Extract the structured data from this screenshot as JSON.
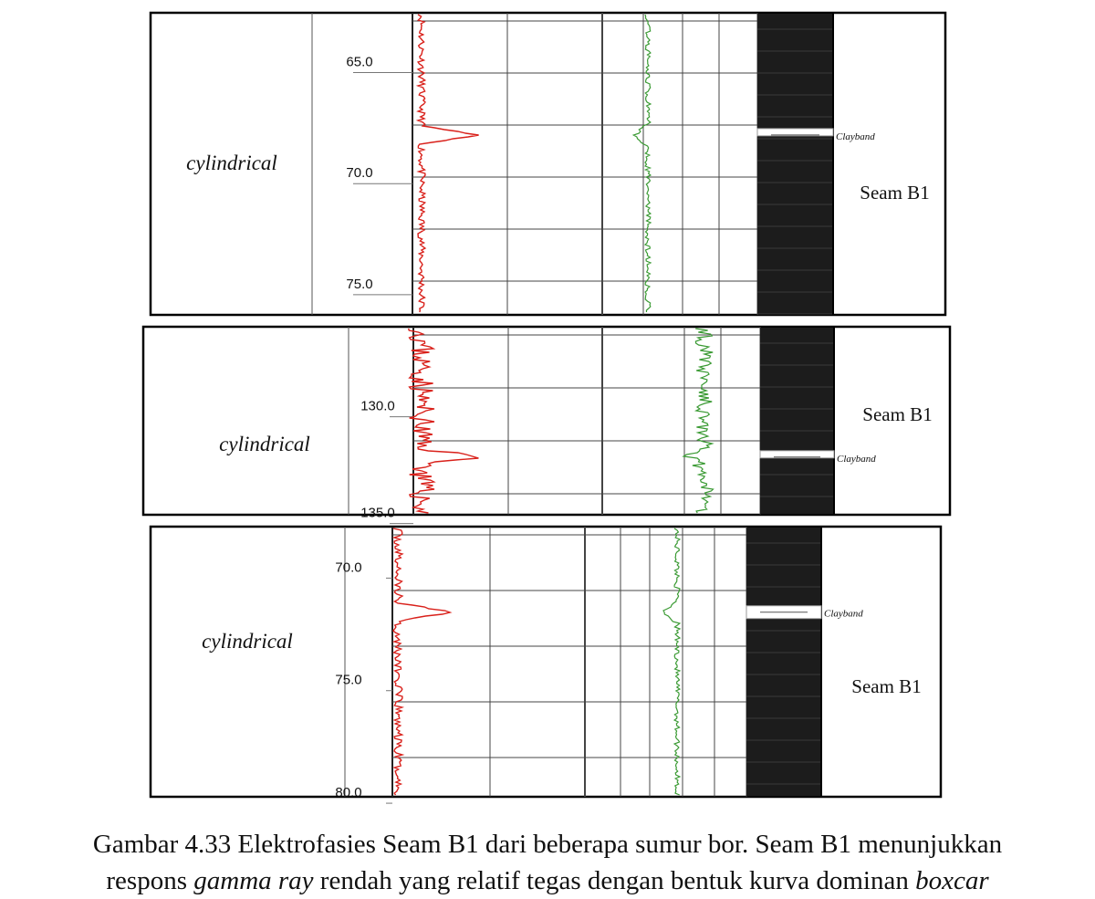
{
  "panels": [
    {
      "facies": "cylindrical",
      "depth_labels": [
        {
          "value": "65.0",
          "depth": 65.0
        },
        {
          "value": "70.0",
          "depth": 70.0
        },
        {
          "value": "75.0",
          "depth": 75.0
        }
      ],
      "depth_range": [
        62.8,
        76.4
      ],
      "clayband_depth": 68.3,
      "clayband_label": "Clayband",
      "seam_label": "Seam B1",
      "seam_label_depth": 70.9
    },
    {
      "facies": "cylindrical",
      "depth_labels": [
        {
          "value": "130.0",
          "depth": 130.0
        },
        {
          "value": "135.0",
          "depth": 135.0
        }
      ],
      "depth_range": [
        126.3,
        135.1
      ],
      "clayband_depth": 132.4,
      "clayband_label": "Clayband",
      "seam_label": "Seam B1",
      "seam_label_depth": 130.4
    },
    {
      "facies": "cylindrical",
      "depth_labels": [
        {
          "value": "70.0",
          "depth": 70.0
        },
        {
          "value": "75.0",
          "depth": 75.0
        },
        {
          "value": "80.0",
          "depth": 80.0
        }
      ],
      "depth_range": [
        68.2,
        80.2
      ],
      "clayband_depth": 72.0,
      "clayband_label": "Clayband",
      "seam_label": "Seam B1",
      "seam_label_depth": 75.3
    }
  ],
  "caption": {
    "line1": "Gambar 4.33 Elektrofasies Seam B1 dari beberapa sumur bor. Seam B1 menunjukkan",
    "line2_start": "respons ",
    "line2_italic": "gamma ray",
    "line2_end": " rendah yang relatif tegas dengan bentuk kurva dominan ",
    "line2_italic2": "boxcar"
  },
  "colors": {
    "gamma_ray": "#d9201a",
    "density": "#3a9a33",
    "coal": "#1c1c1c",
    "grid": "#444444"
  }
}
